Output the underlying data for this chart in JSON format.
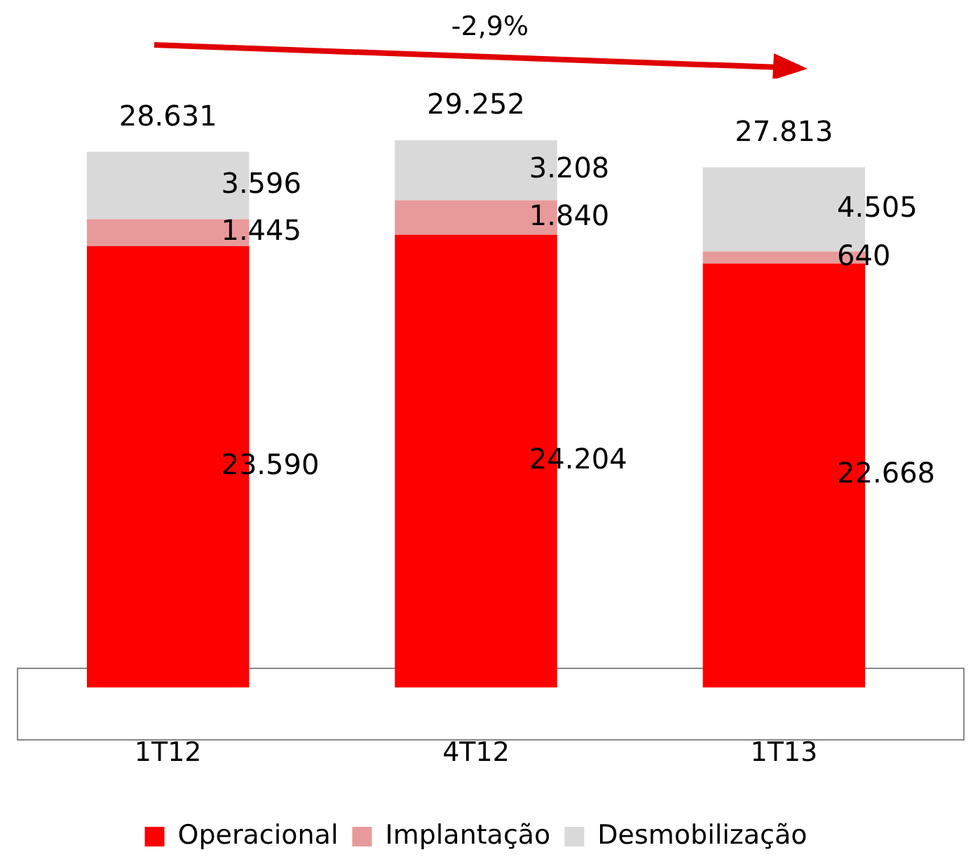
{
  "chart_data": {
    "type": "bar",
    "stacked": true,
    "categories": [
      "1T12",
      "4T12",
      "1T13"
    ],
    "series": [
      {
        "name": "Operacional",
        "color": "#ff0000",
        "values": [
          23590,
          24204,
          22668
        ],
        "value_labels": [
          "23.590",
          "24.204",
          "22.668"
        ]
      },
      {
        "name": "Implantação",
        "color": "#e89a9a",
        "values": [
          1445,
          1840,
          640
        ],
        "value_labels": [
          "1.445",
          "1.840",
          "640"
        ]
      },
      {
        "name": "Desmobilização",
        "color": "#d9d9d9",
        "values": [
          3596,
          3208,
          4505
        ],
        "value_labels": [
          "3.596",
          "3.208",
          "4.505"
        ]
      }
    ],
    "totals": [
      "28.631",
      "29.252",
      "27.813"
    ],
    "annotations": [
      "-2,9%"
    ],
    "legend": "bottom",
    "grid": false
  }
}
